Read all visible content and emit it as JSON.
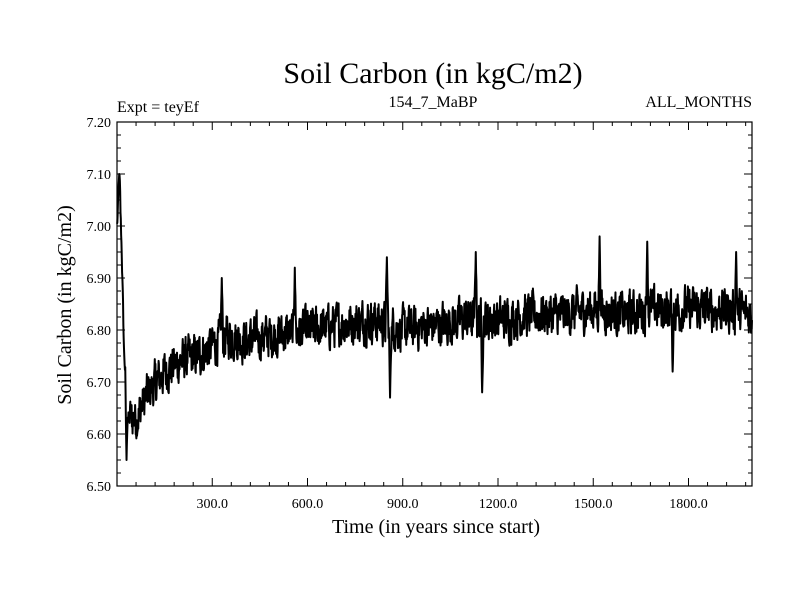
{
  "chart_data": {
    "type": "line",
    "title": "Soil Carbon (in kgC/m2)",
    "subtitle_left": "Expt = teyEf",
    "subtitle_center": "154_7_MaBP",
    "subtitle_right": "ALL_MONTHS",
    "xlabel": "Time (in years since start)",
    "ylabel": "Soil Carbon (in kgC/m2)",
    "xlim": [
      0,
      2000
    ],
    "ylim": [
      6.5,
      7.2
    ],
    "xticks": [
      300,
      600,
      900,
      1200,
      1500,
      1800
    ],
    "xtick_labels": [
      "300.0",
      "600.0",
      "900.0",
      "1200.0",
      "1500.0",
      "1800.0"
    ],
    "yticks": [
      6.5,
      6.6,
      6.7,
      6.8,
      6.9,
      7.0,
      7.1,
      7.2
    ],
    "ytick_labels": [
      "6.50",
      "6.60",
      "6.70",
      "6.80",
      "6.90",
      "7.00",
      "7.10",
      "7.20"
    ],
    "series": [
      {
        "name": "Soil Carbon",
        "color": "#000000",
        "trend_x": [
          0,
          8,
          15,
          22,
          35,
          60,
          100,
          150,
          200,
          250,
          300,
          350,
          400,
          500,
          600,
          700,
          800,
          900,
          1000,
          1100,
          1200,
          1300,
          1400,
          1500,
          1600,
          1700,
          1800,
          1900,
          2000
        ],
        "trend_y": [
          7.0,
          7.08,
          6.95,
          6.76,
          6.63,
          6.63,
          6.68,
          6.72,
          6.74,
          6.75,
          6.77,
          6.79,
          6.78,
          6.79,
          6.8,
          6.81,
          6.82,
          6.8,
          6.81,
          6.82,
          6.82,
          6.83,
          6.83,
          6.84,
          6.83,
          6.84,
          6.84,
          6.84,
          6.83
        ],
        "noise_amplitude": 0.035,
        "extremes": [
          {
            "x": 7,
            "y": 7.1
          },
          {
            "x": 30,
            "y": 6.55
          },
          {
            "x": 330,
            "y": 6.9
          },
          {
            "x": 560,
            "y": 6.92
          },
          {
            "x": 850,
            "y": 6.94
          },
          {
            "x": 860,
            "y": 6.67
          },
          {
            "x": 1130,
            "y": 6.95
          },
          {
            "x": 1150,
            "y": 6.68
          },
          {
            "x": 1520,
            "y": 6.98
          },
          {
            "x": 1670,
            "y": 6.97
          },
          {
            "x": 1750,
            "y": 6.72
          },
          {
            "x": 1950,
            "y": 6.95
          }
        ]
      }
    ]
  }
}
